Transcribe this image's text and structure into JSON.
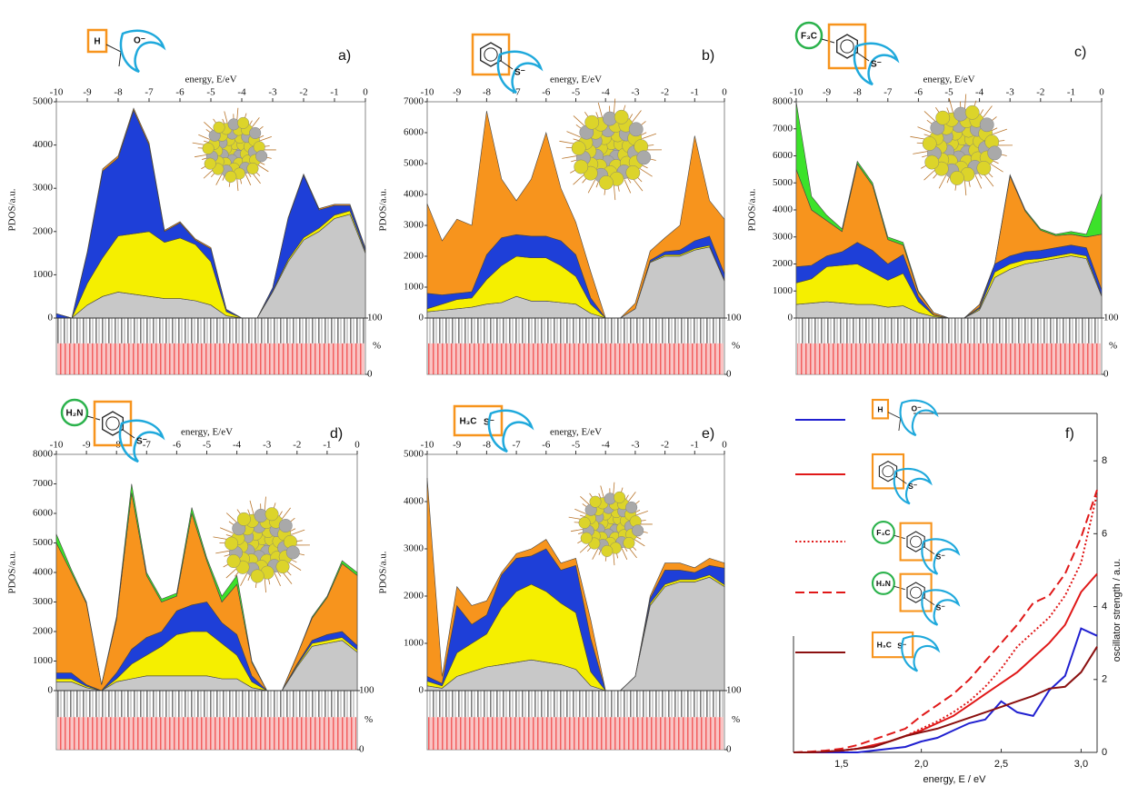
{
  "chart_data": [
    {
      "type": "area",
      "panel_label": "a)",
      "xlabel": "energy, E/eV",
      "ylabel": "PDOS/a.u.",
      "ligand_labels": [
        "H",
        "O⁻"
      ],
      "x": [
        -10,
        -9.5,
        -9,
        -8.5,
        -8,
        -7.5,
        -7,
        -6.5,
        -6,
        -5.5,
        -5,
        -4.5,
        -4,
        -3.5,
        -3,
        -2.5,
        -2,
        -1.5,
        -1,
        -0.5,
        0
      ],
      "xlim": [
        -10,
        0
      ],
      "xticks": [
        -10,
        -9,
        -8,
        -7,
        -6,
        -5,
        -4,
        -3,
        -2,
        -1,
        0
      ],
      "ylim": [
        0,
        5000
      ],
      "yticks": [
        0,
        1000,
        2000,
        3000,
        4000,
        5000
      ],
      "series": [
        {
          "color": "#c8c8c8",
          "values": [
            0,
            0,
            300,
            500,
            600,
            550,
            500,
            450,
            450,
            400,
            300,
            50,
            0,
            0,
            600,
            1300,
            1800,
            2000,
            2300,
            2400,
            1500
          ]
        },
        {
          "color": "#f5ef00",
          "values": [
            0,
            0,
            500,
            900,
            1300,
            1400,
            1500,
            1300,
            1400,
            1300,
            1000,
            100,
            0,
            0,
            30,
            50,
            60,
            80,
            80,
            80,
            40
          ]
        },
        {
          "color": "#1e3fd8",
          "values": [
            100,
            0,
            700,
            2000,
            1800,
            2850,
            2000,
            250,
            350,
            100,
            300,
            50,
            0,
            0,
            70,
            950,
            1440,
            420,
            220,
            120,
            60
          ]
        },
        {
          "color": "#f7941d",
          "values": [
            0,
            0,
            30,
            50,
            50,
            50,
            50,
            30,
            30,
            30,
            30,
            0,
            0,
            0,
            0,
            20,
            30,
            30,
            30,
            30,
            20
          ]
        }
      ],
      "strip": {
        "ylim": [
          0,
          100
        ],
        "yticks": [
          0,
          100
        ],
        "label": "%"
      }
    },
    {
      "type": "area",
      "panel_label": "b)",
      "xlabel": "energy, E/eV",
      "ylabel": "PDOS/a.u.",
      "ligand_labels": [
        "S⁻"
      ],
      "x": [
        -10,
        -9.5,
        -9,
        -8.5,
        -8,
        -7.5,
        -7,
        -6.5,
        -6,
        -5.5,
        -5,
        -4.5,
        -4,
        -3.5,
        -3,
        -2.5,
        -2,
        -1.5,
        -1,
        -0.5,
        0
      ],
      "xlim": [
        -10,
        0
      ],
      "xticks": [
        -10,
        -9,
        -8,
        -7,
        -6,
        -5,
        -4,
        -3,
        -2,
        -1,
        0
      ],
      "ylim": [
        0,
        7000
      ],
      "yticks": [
        0,
        1000,
        2000,
        3000,
        4000,
        5000,
        6000,
        7000
      ],
      "series": [
        {
          "color": "#c8c8c8",
          "values": [
            200,
            250,
            300,
            350,
            450,
            500,
            700,
            550,
            550,
            500,
            450,
            150,
            0,
            0,
            300,
            1800,
            2000,
            2000,
            2200,
            2300,
            1200
          ]
        },
        {
          "color": "#f5ef00",
          "values": [
            100,
            200,
            300,
            300,
            800,
            1200,
            1300,
            1400,
            1400,
            1200,
            900,
            300,
            0,
            0,
            0,
            20,
            50,
            50,
            50,
            50,
            30
          ]
        },
        {
          "color": "#1e3fd8",
          "values": [
            500,
            300,
            200,
            200,
            800,
            900,
            700,
            700,
            700,
            800,
            700,
            200,
            0,
            0,
            0,
            50,
            100,
            150,
            250,
            300,
            200
          ]
        },
        {
          "color": "#f7941d",
          "values": [
            2900,
            1750,
            2400,
            2150,
            4650,
            1900,
            1100,
            1850,
            3350,
            1700,
            1050,
            850,
            0,
            0,
            180,
            300,
            450,
            800,
            3400,
            1150,
            1770
          ]
        }
      ],
      "strip": {
        "ylim": [
          0,
          100
        ],
        "yticks": [
          0,
          100
        ],
        "label": "%"
      }
    },
    {
      "type": "area",
      "panel_label": "c)",
      "xlabel": "energy, E/eV",
      "ylabel": "PDOS/a.u.",
      "ligand_labels": [
        "F₃C",
        "S⁻"
      ],
      "x": [
        -10,
        -9.5,
        -9,
        -8.5,
        -8,
        -7.5,
        -7,
        -6.5,
        -6,
        -5.5,
        -5,
        -4.5,
        -4,
        -3.5,
        -3,
        -2.5,
        -2,
        -1.5,
        -1,
        -0.5,
        0
      ],
      "xlim": [
        -10,
        0
      ],
      "xticks": [
        -10,
        -9,
        -8,
        -7,
        -6,
        -5,
        -4,
        -3,
        -2,
        -1,
        0
      ],
      "ylim": [
        0,
        8000
      ],
      "yticks": [
        0,
        1000,
        2000,
        3000,
        4000,
        5000,
        6000,
        7000,
        8000
      ],
      "series": [
        {
          "color": "#c8c8c8",
          "values": [
            500,
            550,
            600,
            550,
            500,
            500,
            400,
            450,
            200,
            50,
            0,
            0,
            300,
            1500,
            1800,
            2000,
            2100,
            2200,
            2300,
            2200,
            800
          ]
        },
        {
          "color": "#f5ef00",
          "values": [
            800,
            900,
            1300,
            1400,
            1500,
            1200,
            1000,
            1200,
            400,
            50,
            0,
            0,
            50,
            200,
            200,
            150,
            100,
            100,
            100,
            100,
            50
          ]
        },
        {
          "color": "#1e3fd8",
          "values": [
            600,
            500,
            400,
            500,
            800,
            800,
            600,
            700,
            200,
            20,
            0,
            0,
            50,
            300,
            300,
            300,
            300,
            300,
            300,
            300,
            200
          ]
        },
        {
          "color": "#f7941d",
          "values": [
            3600,
            2050,
            1300,
            750,
            2900,
            2400,
            900,
            350,
            150,
            80,
            0,
            0,
            100,
            0,
            2950,
            1500,
            750,
            450,
            400,
            400,
            2050
          ]
        },
        {
          "color": "#3ce22a",
          "values": [
            2500,
            500,
            200,
            100,
            100,
            100,
            100,
            100,
            50,
            0,
            0,
            0,
            0,
            0,
            50,
            50,
            50,
            50,
            100,
            100,
            1500
          ]
        }
      ],
      "strip": {
        "ylim": [
          0,
          100
        ],
        "yticks": [
          0,
          100
        ],
        "label": "%"
      }
    },
    {
      "type": "area",
      "panel_label": "d)",
      "xlabel": "energy, E/eV",
      "ylabel": "PDOS/a.u.",
      "ligand_labels": [
        "H₂N",
        "S⁻"
      ],
      "x": [
        -10,
        -9.5,
        -9,
        -8.5,
        -8,
        -7.5,
        -7,
        -6.5,
        -6,
        -5.5,
        -5,
        -4.5,
        -4,
        -3.5,
        -3,
        -2.5,
        -2,
        -1.5,
        -1,
        -0.5,
        0
      ],
      "xlim": [
        -10,
        0
      ],
      "xticks": [
        -10,
        -9,
        -8,
        -7,
        -6,
        -5,
        -4,
        -3,
        -2,
        -1,
        0
      ],
      "ylim": [
        0,
        8000
      ],
      "yticks": [
        0,
        1000,
        2000,
        3000,
        4000,
        5000,
        6000,
        7000,
        8000
      ],
      "series": [
        {
          "color": "#c8c8c8",
          "values": [
            300,
            300,
            100,
            0,
            300,
            400,
            500,
            500,
            500,
            500,
            500,
            400,
            400,
            100,
            0,
            0,
            800,
            1500,
            1600,
            1700,
            1300
          ]
        },
        {
          "color": "#f5ef00",
          "values": [
            100,
            100,
            50,
            0,
            100,
            500,
            700,
            1000,
            1400,
            1500,
            1500,
            1200,
            800,
            200,
            0,
            0,
            50,
            100,
            100,
            100,
            80
          ]
        },
        {
          "color": "#1e3fd8",
          "values": [
            200,
            200,
            50,
            0,
            200,
            500,
            600,
            500,
            800,
            900,
            1000,
            700,
            700,
            200,
            0,
            0,
            50,
            100,
            200,
            200,
            150
          ]
        },
        {
          "color": "#f7941d",
          "values": [
            4400,
            3400,
            2750,
            200,
            1800,
            5300,
            2100,
            1000,
            500,
            3100,
            1400,
            700,
            1700,
            450,
            0,
            0,
            300,
            750,
            1250,
            2300,
            2370
          ]
        },
        {
          "color": "#3ce22a",
          "values": [
            300,
            100,
            50,
            0,
            100,
            300,
            100,
            100,
            100,
            200,
            100,
            200,
            300,
            50,
            0,
            0,
            0,
            50,
            50,
            100,
            100
          ]
        }
      ],
      "strip": {
        "ylim": [
          0,
          100
        ],
        "yticks": [
          0,
          100
        ],
        "label": "%"
      }
    },
    {
      "type": "area",
      "panel_label": "e)",
      "xlabel": "energy, E/eV",
      "ylabel": "PDOS/a.u.",
      "ligand_labels": [
        "H₃C",
        "S⁻"
      ],
      "x": [
        -10,
        -9.5,
        -9,
        -8.5,
        -8,
        -7.5,
        -7,
        -6.5,
        -6,
        -5.5,
        -5,
        -4.5,
        -4,
        -3.5,
        -3,
        -2.5,
        -2,
        -1.5,
        -1,
        -0.5,
        0
      ],
      "xlim": [
        -10,
        0
      ],
      "xticks": [
        -10,
        -9,
        -8,
        -7,
        -6,
        -5,
        -4,
        -3,
        -2,
        -1,
        0
      ],
      "ylim": [
        0,
        5000
      ],
      "yticks": [
        0,
        1000,
        2000,
        3000,
        4000,
        5000
      ],
      "series": [
        {
          "color": "#c8c8c8",
          "values": [
            100,
            50,
            300,
            400,
            500,
            550,
            600,
            650,
            600,
            550,
            450,
            100,
            0,
            0,
            300,
            1800,
            2200,
            2300,
            2300,
            2400,
            2200
          ]
        },
        {
          "color": "#f5ef00",
          "values": [
            100,
            50,
            500,
            600,
            700,
            1200,
            1500,
            1600,
            1500,
            1300,
            1200,
            300,
            0,
            0,
            0,
            50,
            50,
            50,
            50,
            50,
            40
          ]
        },
        {
          "color": "#1e3fd8",
          "values": [
            100,
            50,
            1000,
            400,
            400,
            700,
            700,
            600,
            900,
            700,
            1000,
            700,
            0,
            0,
            0,
            100,
            300,
            200,
            150,
            200,
            350
          ]
        },
        {
          "color": "#f7941d",
          "values": [
            4200,
            150,
            400,
            400,
            300,
            50,
            100,
            150,
            200,
            150,
            150,
            400,
            0,
            0,
            0,
            50,
            150,
            150,
            100,
            150,
            110
          ]
        }
      ],
      "strip": {
        "ylim": [
          0,
          100
        ],
        "yticks": [
          0,
          100
        ],
        "label": "%"
      }
    },
    {
      "type": "line",
      "panel_label": "f)",
      "xlabel": "energy,  E / eV",
      "ylabel": "oscillator strength / a.u.",
      "x": [
        1.2,
        1.3,
        1.4,
        1.5,
        1.6,
        1.7,
        1.8,
        1.9,
        2.0,
        2.1,
        2.2,
        2.3,
        2.4,
        2.5,
        2.6,
        2.7,
        2.8,
        2.9,
        3.0,
        3.1
      ],
      "xlim": [
        1.2,
        3.1
      ],
      "xticks": [
        {
          "value": 1.5,
          "label": "1,5"
        },
        {
          "value": 2.0,
          "label": "2,0"
        },
        {
          "value": 2.5,
          "label": "2,5"
        },
        {
          "value": 3.0,
          "label": "3,0"
        }
      ],
      "ylim": [
        0,
        9.3
      ],
      "yticks": [
        0,
        2,
        4,
        6,
        8
      ],
      "series": [
        {
          "color": "#2020d0",
          "dash": "solid",
          "ligand_labels": [
            "H",
            "O⁻"
          ],
          "values": [
            0,
            0,
            0,
            0,
            0,
            0.05,
            0.1,
            0.15,
            0.3,
            0.4,
            0.6,
            0.8,
            0.9,
            1.4,
            1.1,
            1.0,
            1.7,
            2.1,
            3.4,
            3.2
          ]
        },
        {
          "color": "#e01818",
          "dash": "solid",
          "ligand_labels": [
            "S⁻"
          ],
          "values": [
            0,
            0,
            0.02,
            0.05,
            0.1,
            0.2,
            0.3,
            0.45,
            0.6,
            0.8,
            1.0,
            1.3,
            1.6,
            1.9,
            2.2,
            2.6,
            3.0,
            3.5,
            4.4,
            4.9
          ]
        },
        {
          "color": "#e01818",
          "dash": "dotted",
          "ligand_labels": [
            "F₃C",
            "S⁻"
          ],
          "values": [
            0,
            0,
            0.02,
            0.05,
            0.1,
            0.2,
            0.3,
            0.45,
            0.65,
            0.85,
            1.1,
            1.4,
            1.8,
            2.3,
            2.9,
            3.3,
            3.7,
            4.3,
            5.2,
            7.1
          ]
        },
        {
          "color": "#e01818",
          "dash": "dashed",
          "ligand_labels": [
            "H₂N",
            "S⁻"
          ],
          "values": [
            0,
            0.02,
            0.05,
            0.1,
            0.2,
            0.35,
            0.5,
            0.65,
            1.0,
            1.3,
            1.6,
            2.0,
            2.5,
            3.0,
            3.5,
            4.1,
            4.3,
            4.9,
            5.9,
            7.2
          ]
        },
        {
          "color": "#8b1010",
          "dash": "solid",
          "ligand_labels": [
            "H₃C",
            "S⁻"
          ],
          "values": [
            0,
            0,
            0.02,
            0.05,
            0.1,
            0.15,
            0.3,
            0.45,
            0.55,
            0.65,
            0.8,
            0.95,
            1.1,
            1.25,
            1.4,
            1.55,
            1.75,
            1.8,
            2.2,
            2.9
          ]
        }
      ]
    }
  ]
}
